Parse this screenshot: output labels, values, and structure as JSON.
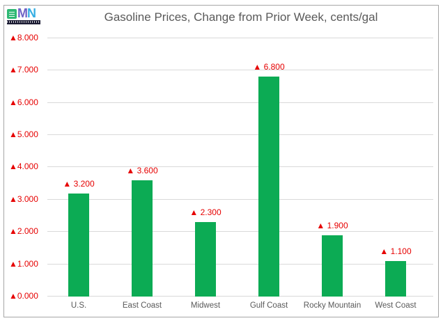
{
  "window": {
    "background": "#ffffff",
    "frame_border_color": "#a6a6a6"
  },
  "logo": {
    "letter_m": "M",
    "letter_n": "N",
    "square_color": "#2eb873",
    "m_color": "#6f63c5",
    "n_color": "#35aee3",
    "strip_color": "#1b1b33"
  },
  "chart_data": {
    "type": "bar",
    "title": "Gasoline Prices, Change from Prior Week, cents/gal",
    "xlabel": "",
    "ylabel": "",
    "categories": [
      "U.S.",
      "East Coast",
      "Midwest",
      "Gulf Coast",
      "Rocky Mountain",
      "West Coast"
    ],
    "values": [
      3.2,
      3.6,
      2.3,
      6.8,
      1.9,
      1.1
    ],
    "data_labels": [
      "▲ 3.200",
      "▲ 3.600",
      "▲ 2.300",
      "▲ 6.800",
      "▲ 1.900",
      "▲ 1.100"
    ],
    "y_tick_values": [
      0,
      1,
      2,
      3,
      4,
      5,
      6,
      7,
      8
    ],
    "y_ticks": [
      "▲0.000",
      "▲1.000",
      "▲2.000",
      "▲3.000",
      "▲4.000",
      "▲5.000",
      "▲6.000",
      "▲7.000",
      "▲8.000"
    ],
    "ylim": [
      0,
      8
    ],
    "grid": true,
    "legend": "none",
    "up_marker": "▲",
    "bar_color": "#0cab54",
    "value_text_color": "#e60000",
    "axis_text_color": "#595959",
    "gridline_color": "#d9d9d9",
    "title_color": "#595959"
  }
}
